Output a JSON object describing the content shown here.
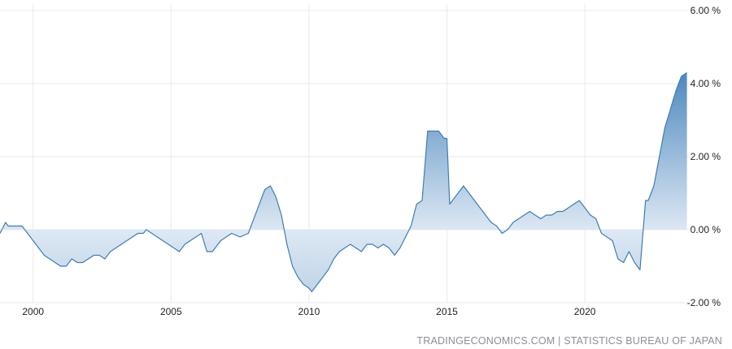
{
  "source_text": "TRADINGECONOMICS.COM | STATISTICS BUREAU OF JAPAN",
  "colors": {
    "line": "#3f7db3",
    "fill_top": "#4a86bd",
    "fill_zero": "#dbe7f3",
    "grid": "#e9e9e9",
    "text": "#222222",
    "source": "#8a8f99"
  },
  "chart_data": {
    "type": "area",
    "title": "",
    "xlabel": "",
    "ylabel": "",
    "xlim": [
      1998.8,
      2023.8
    ],
    "ylim": [
      -2,
      6
    ],
    "grid": true,
    "y_axis_position": "right",
    "x_ticks": [
      2000,
      2005,
      2010,
      2015,
      2020
    ],
    "x_tick_labels": [
      "2000",
      "2005",
      "2010",
      "2015",
      "2020"
    ],
    "y_ticks": [
      -2,
      0,
      2,
      4,
      6
    ],
    "y_tick_labels": [
      "-2.00 %",
      "0.00 %",
      "2.00 %",
      "4.00 %",
      "6.00 %"
    ],
    "x": [
      1998.8,
      1999.0,
      1999.1,
      1999.3,
      1999.5,
      1999.6,
      1999.8,
      2000.0,
      2000.2,
      2000.4,
      2000.6,
      2000.8,
      2001.0,
      2001.2,
      2001.4,
      2001.6,
      2001.8,
      2002.0,
      2002.2,
      2002.4,
      2002.6,
      2002.8,
      2003.0,
      2003.2,
      2003.4,
      2003.6,
      2003.8,
      2004.0,
      2004.1,
      2004.3,
      2004.5,
      2004.7,
      2004.9,
      2005.1,
      2005.3,
      2005.5,
      2005.7,
      2005.9,
      2006.1,
      2006.3,
      2006.5,
      2006.8,
      2007.0,
      2007.2,
      2007.5,
      2007.8,
      2008.0,
      2008.2,
      2008.4,
      2008.6,
      2008.8,
      2009.0,
      2009.2,
      2009.4,
      2009.6,
      2009.8,
      2010.0,
      2010.1,
      2010.3,
      2010.5,
      2010.7,
      2010.9,
      2011.1,
      2011.3,
      2011.5,
      2011.7,
      2011.9,
      2012.1,
      2012.3,
      2012.5,
      2012.7,
      2012.9,
      2013.1,
      2013.3,
      2013.5,
      2013.7,
      2013.9,
      2014.1,
      2014.3,
      2014.5,
      2014.7,
      2014.9,
      2015.0,
      2015.1,
      2015.2,
      2015.4,
      2015.6,
      2015.8,
      2016.0,
      2016.2,
      2016.4,
      2016.6,
      2016.8,
      2017.0,
      2017.2,
      2017.4,
      2017.6,
      2017.8,
      2018.0,
      2018.2,
      2018.4,
      2018.6,
      2018.8,
      2019.0,
      2019.2,
      2019.4,
      2019.6,
      2019.8,
      2020.0,
      2020.2,
      2020.4,
      2020.6,
      2020.8,
      2021.0,
      2021.2,
      2021.4,
      2021.6,
      2021.8,
      2022.0,
      2022.2,
      2022.3,
      2022.5,
      2022.7,
      2022.9,
      2023.1,
      2023.3,
      2023.5,
      2023.7
    ],
    "series": [
      {
        "values": [
          -0.1,
          0.2,
          0.1,
          0.1,
          0.1,
          0.1,
          -0.1,
          -0.3,
          -0.5,
          -0.7,
          -0.8,
          -0.9,
          -1.0,
          -1.0,
          -0.8,
          -0.9,
          -0.9,
          -0.8,
          -0.7,
          -0.7,
          -0.8,
          -0.6,
          -0.5,
          -0.4,
          -0.3,
          -0.2,
          -0.1,
          -0.1,
          0.0,
          -0.1,
          -0.2,
          -0.3,
          -0.4,
          -0.5,
          -0.6,
          -0.4,
          -0.3,
          -0.2,
          -0.1,
          -0.6,
          -0.6,
          -0.3,
          -0.2,
          -0.1,
          -0.2,
          -0.1,
          0.3,
          0.7,
          1.1,
          1.2,
          0.9,
          0.4,
          -0.4,
          -1.0,
          -1.3,
          -1.5,
          -1.6,
          -1.7,
          -1.5,
          -1.3,
          -1.1,
          -0.8,
          -0.6,
          -0.5,
          -0.4,
          -0.5,
          -0.6,
          -0.4,
          -0.4,
          -0.5,
          -0.4,
          -0.5,
          -0.7,
          -0.5,
          -0.2,
          0.1,
          0.7,
          0.8,
          2.7,
          2.7,
          2.7,
          2.5,
          2.5,
          0.7,
          0.8,
          1.0,
          1.2,
          1.0,
          0.8,
          0.6,
          0.4,
          0.2,
          0.1,
          -0.1,
          0.0,
          0.2,
          0.3,
          0.4,
          0.5,
          0.4,
          0.3,
          0.4,
          0.4,
          0.5,
          0.5,
          0.6,
          0.7,
          0.8,
          0.6,
          0.4,
          0.3,
          -0.1,
          -0.2,
          -0.3,
          -0.8,
          -0.9,
          -0.6,
          -0.9,
          -1.1,
          0.8,
          0.8,
          1.2,
          2.0,
          2.8,
          3.3,
          3.8,
          4.2,
          4.3
        ]
      }
    ]
  }
}
